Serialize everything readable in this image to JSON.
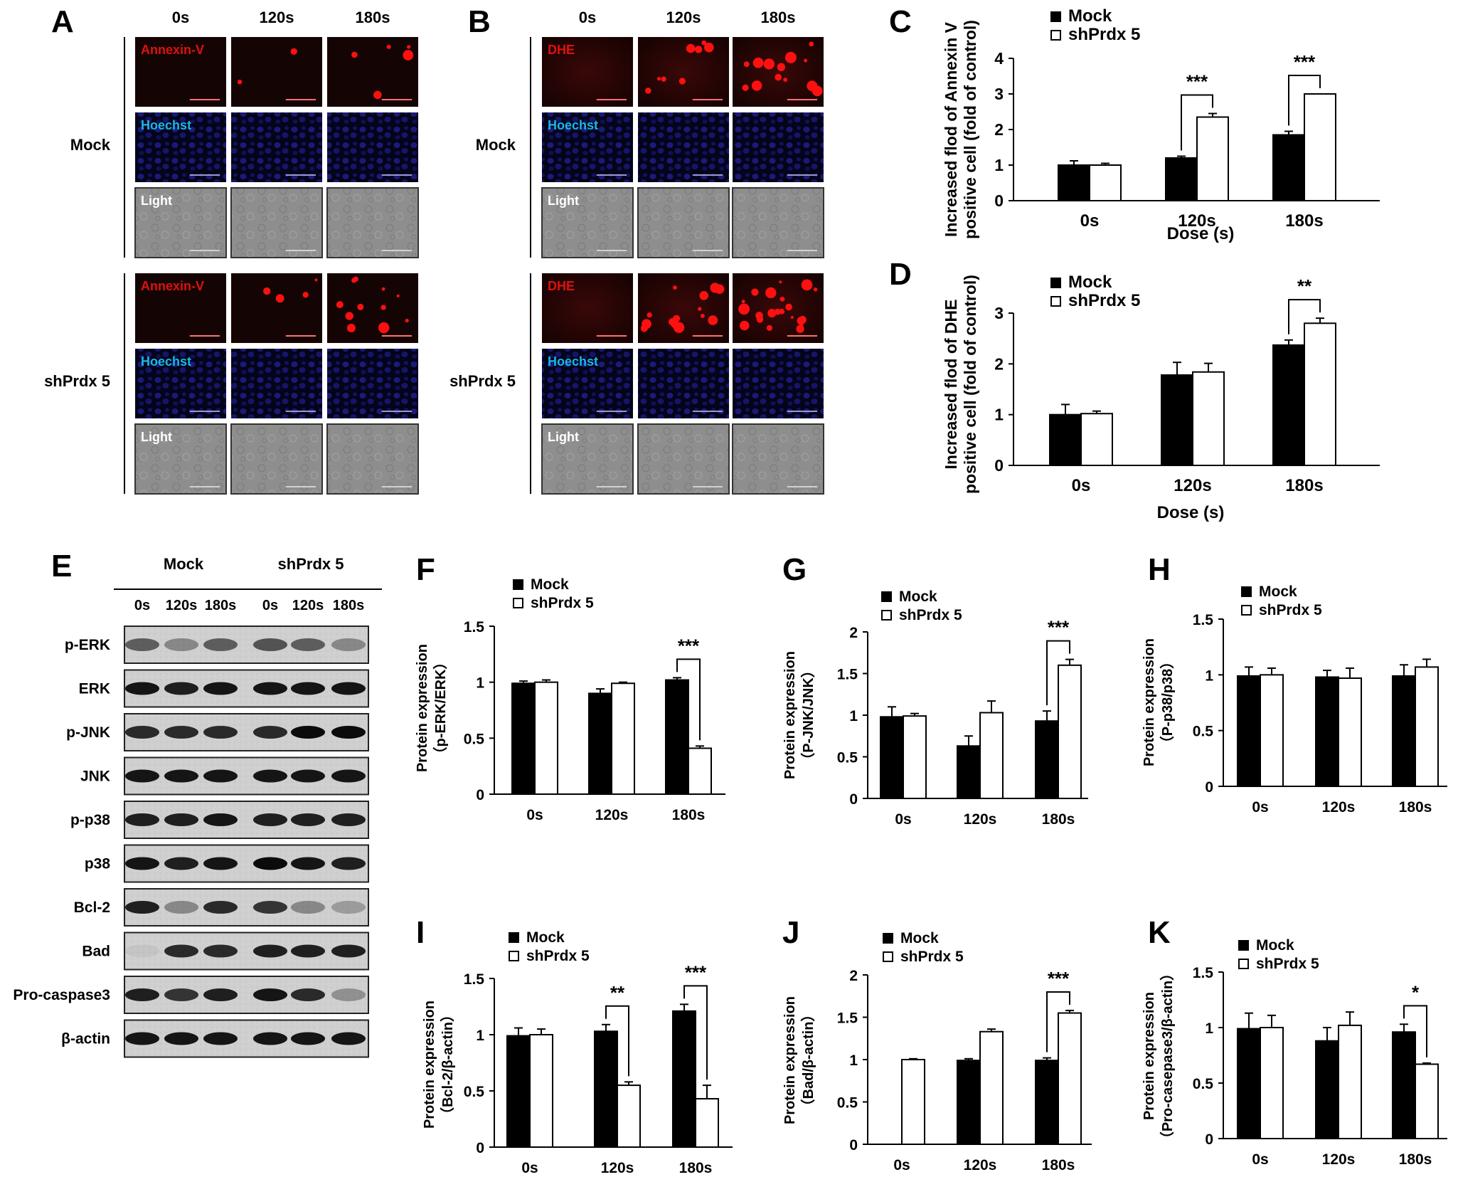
{
  "panels": {
    "A": {
      "letter": "A",
      "time_headers": [
        "0s",
        "120s",
        "180s"
      ],
      "groups": [
        {
          "label": "Mock",
          "channels": [
            {
              "label": "Annexin-V",
              "dots": [
                0,
                2,
                5
              ]
            },
            {
              "label": "Hoechst"
            },
            {
              "label": "Light"
            }
          ]
        },
        {
          "label": "shPrdx 5",
          "channels": [
            {
              "label": "Annexin-V",
              "dots": [
                0,
                4,
                11
              ]
            },
            {
              "label": "Hoechst"
            },
            {
              "label": "Light"
            }
          ]
        }
      ]
    },
    "B": {
      "letter": "B",
      "time_headers": [
        "0s",
        "120s",
        "180s"
      ],
      "groups": [
        {
          "label": "Mock",
          "channels": [
            {
              "label": "DHE",
              "dots": [
                0,
                8,
                14
              ]
            },
            {
              "label": "Hoechst"
            },
            {
              "label": "Light"
            }
          ]
        },
        {
          "label": "shPrdx 5",
          "channels": [
            {
              "label": "DHE",
              "dots": [
                0,
                14,
                22
              ]
            },
            {
              "label": "Hoechst"
            },
            {
              "label": "Light"
            }
          ]
        }
      ]
    },
    "E": {
      "letter": "E",
      "group_labels": [
        "Mock",
        "shPrdx 5"
      ],
      "lane_labels": [
        "0s",
        "120s",
        "180s",
        "0s",
        "120s",
        "180s"
      ],
      "bands": [
        "p-ERK",
        "ERK",
        "p-JNK",
        "JNK",
        "p-p38",
        "p38",
        "Bcl-2",
        "Bad",
        "Pro-caspase3",
        "β-actin"
      ]
    }
  },
  "chart_data": [
    {
      "panel": "C",
      "type": "bar",
      "categories": [
        "0s",
        "120s",
        "180s"
      ],
      "series": [
        {
          "name": "Mock",
          "values": [
            1.0,
            1.2,
            1.85
          ],
          "errors": [
            0.12,
            0.05,
            0.1
          ]
        },
        {
          "name": "shPrdx 5",
          "values": [
            1.0,
            2.35,
            3.0
          ],
          "errors": [
            0.05,
            0.1,
            0.0
          ]
        }
      ],
      "ylabel": [
        "Increased  flod of Annexin V",
        "positive cell (fold of control)"
      ],
      "xlabel": "Dose (s)",
      "ylim": [
        0,
        4
      ],
      "yticks": [
        "0",
        "1",
        "2",
        "3",
        "4"
      ],
      "significance": [
        {
          "category": 1,
          "label": "***"
        },
        {
          "category": 2,
          "label": "***"
        }
      ]
    },
    {
      "panel": "D",
      "type": "bar",
      "categories": [
        "0s",
        "120s",
        "180s"
      ],
      "series": [
        {
          "name": "Mock",
          "values": [
            1.0,
            1.78,
            2.37
          ],
          "errors": [
            0.2,
            0.25,
            0.1
          ]
        },
        {
          "name": "shPrdx 5",
          "values": [
            1.02,
            1.84,
            2.8
          ],
          "errors": [
            0.05,
            0.17,
            0.1
          ]
        }
      ],
      "ylabel": [
        "Increased  flod of DHE",
        "positive cell (fold of control)"
      ],
      "xlabel": "Dose (s)",
      "ylim": [
        0,
        3
      ],
      "yticks": [
        "0",
        "1",
        "2",
        "3"
      ],
      "significance": [
        {
          "category": 2,
          "label": "**"
        }
      ]
    },
    {
      "panel": "F",
      "type": "bar",
      "categories": [
        "0s",
        "120s",
        "180s"
      ],
      "series": [
        {
          "name": "Mock",
          "values": [
            0.99,
            0.9,
            1.02
          ],
          "errors": [
            0.02,
            0.04,
            0.02
          ]
        },
        {
          "name": "shPrdx 5",
          "values": [
            1.0,
            0.99,
            0.41
          ],
          "errors": [
            0.02,
            0.01,
            0.02
          ]
        }
      ],
      "ylabel": [
        "Protein expression",
        "（p-ERK/ERK）"
      ],
      "xlabel": "",
      "ylim": [
        0,
        1.5
      ],
      "yticks": [
        "0",
        "0.5",
        "1",
        "1.5"
      ],
      "significance": [
        {
          "category": 2,
          "label": "***"
        }
      ]
    },
    {
      "panel": "G",
      "type": "bar",
      "categories": [
        "0s",
        "120s",
        "180s"
      ],
      "series": [
        {
          "name": "Mock",
          "values": [
            0.98,
            0.63,
            0.93
          ],
          "errors": [
            0.12,
            0.12,
            0.12
          ]
        },
        {
          "name": "shPrdx 5",
          "values": [
            0.99,
            1.03,
            1.6
          ],
          "errors": [
            0.03,
            0.14,
            0.07
          ]
        }
      ],
      "ylabel": [
        "Protein expression",
        "（P-JNK/JNK）"
      ],
      "xlabel": "",
      "ylim": [
        0,
        2
      ],
      "yticks": [
        "0",
        "0.5",
        "1",
        "1.5",
        "2"
      ],
      "significance": [
        {
          "category": 2,
          "label": "***"
        }
      ]
    },
    {
      "panel": "H",
      "type": "bar",
      "categories": [
        "0s",
        "120s",
        "180s"
      ],
      "series": [
        {
          "name": "Mock",
          "values": [
            0.99,
            0.98,
            0.99
          ],
          "errors": [
            0.08,
            0.06,
            0.1
          ]
        },
        {
          "name": "shPrdx 5",
          "values": [
            1.0,
            0.97,
            1.07
          ],
          "errors": [
            0.06,
            0.09,
            0.07
          ]
        }
      ],
      "ylabel": [
        "Protein expression",
        "（P-p38/p38）"
      ],
      "xlabel": "",
      "ylim": [
        0,
        1.5
      ],
      "yticks": [
        "0",
        "0.5",
        "1",
        "1.5"
      ],
      "significance": []
    },
    {
      "panel": "I",
      "type": "bar",
      "categories": [
        "0s",
        "120s",
        "180s"
      ],
      "series": [
        {
          "name": "Mock",
          "values": [
            0.99,
            1.03,
            1.21
          ],
          "errors": [
            0.07,
            0.06,
            0.06
          ]
        },
        {
          "name": "shPrdx 5",
          "values": [
            1.0,
            0.55,
            0.43
          ],
          "errors": [
            0.05,
            0.03,
            0.12
          ]
        }
      ],
      "ylabel": [
        "Protein expression",
        "（Bcl-2/β-actin）"
      ],
      "xlabel": "",
      "ylim": [
        0,
        1.5
      ],
      "yticks": [
        "0",
        "0.5",
        "1",
        "1.5"
      ],
      "significance": [
        {
          "category": 1,
          "label": "**"
        },
        {
          "category": 2,
          "label": "***"
        }
      ]
    },
    {
      "panel": "J",
      "type": "bar",
      "categories": [
        "0s",
        "120s",
        "180s"
      ],
      "series": [
        {
          "name": "Mock",
          "values": [
            0,
            0.99,
            0.99
          ],
          "errors": [
            0,
            0.02,
            0.03
          ]
        },
        {
          "name": "shPrdx 5",
          "values": [
            1.0,
            1.33,
            1.55
          ],
          "errors": [
            0.01,
            0.03,
            0.03
          ]
        }
      ],
      "ylabel": [
        "Protein expression",
        "（Bad/β-actin）"
      ],
      "xlabel": "",
      "ylim": [
        0,
        2
      ],
      "yticks": [
        "0",
        "0.5",
        "1",
        "1.5",
        "2"
      ],
      "significance": [
        {
          "category": 2,
          "label": "***"
        }
      ]
    },
    {
      "panel": "K",
      "type": "bar",
      "categories": [
        "0s",
        "120s",
        "180s"
      ],
      "series": [
        {
          "name": "Mock",
          "values": [
            0.99,
            0.88,
            0.96
          ],
          "errors": [
            0.14,
            0.12,
            0.07
          ]
        },
        {
          "name": "shPrdx 5",
          "values": [
            1.0,
            1.02,
            0.67
          ],
          "errors": [
            0.11,
            0.12,
            0.01
          ]
        }
      ],
      "ylabel": [
        "Protein expression",
        "（Pro-casepase3/β-actin）"
      ],
      "xlabel": "",
      "ylim": [
        0,
        1.5
      ],
      "yticks": [
        "0",
        "0.5",
        "1",
        "1.5"
      ],
      "significance": [
        {
          "category": 2,
          "label": "*"
        }
      ]
    }
  ]
}
